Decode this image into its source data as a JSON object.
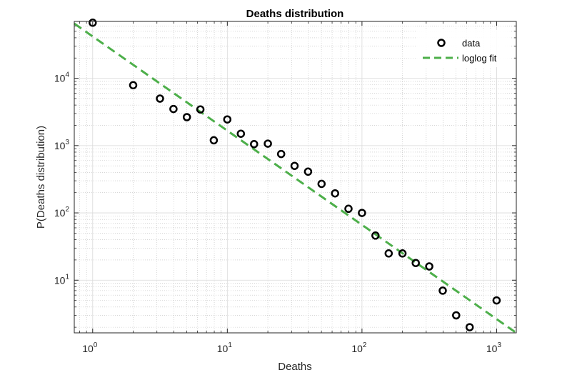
{
  "chart_data": {
    "type": "scatter",
    "title": "Deaths distribution",
    "xlabel": "Deaths",
    "ylabel": "P(Deaths distribution)",
    "x_scale": "log",
    "y_scale": "log",
    "xlim": [
      0.73,
      1400
    ],
    "ylim": [
      1.65,
      70000
    ],
    "grid": true,
    "minor_grid": true,
    "legend_position": "top-right",
    "x_ticks": [
      {
        "value": 1,
        "base": "10",
        "exp": "0"
      },
      {
        "value": 10,
        "base": "10",
        "exp": "1"
      },
      {
        "value": 100,
        "base": "10",
        "exp": "2"
      },
      {
        "value": 1000,
        "base": "10",
        "exp": "3"
      }
    ],
    "y_ticks": [
      {
        "value": 10,
        "base": "10",
        "exp": "1"
      },
      {
        "value": 100,
        "base": "10",
        "exp": "2"
      },
      {
        "value": 1000,
        "base": "10",
        "exp": "3"
      },
      {
        "value": 10000,
        "base": "10",
        "exp": "4"
      }
    ],
    "series": [
      {
        "name": "data",
        "marker": "circle",
        "color": "#000000",
        "points": [
          {
            "x": 1,
            "y": 67000
          },
          {
            "x": 2,
            "y": 7900
          },
          {
            "x": 3.16,
            "y": 5000
          },
          {
            "x": 3.98,
            "y": 3500
          },
          {
            "x": 5.01,
            "y": 2650
          },
          {
            "x": 6.31,
            "y": 3450
          },
          {
            "x": 7.94,
            "y": 1200
          },
          {
            "x": 10,
            "y": 2450
          },
          {
            "x": 12.6,
            "y": 1500
          },
          {
            "x": 15.8,
            "y": 1050
          },
          {
            "x": 20,
            "y": 1070
          },
          {
            "x": 25.1,
            "y": 750
          },
          {
            "x": 31.6,
            "y": 500
          },
          {
            "x": 39.8,
            "y": 410
          },
          {
            "x": 50.1,
            "y": 270
          },
          {
            "x": 63.1,
            "y": 195
          },
          {
            "x": 79.4,
            "y": 115
          },
          {
            "x": 100,
            "y": 100
          },
          {
            "x": 126,
            "y": 46
          },
          {
            "x": 158,
            "y": 25
          },
          {
            "x": 200,
            "y": 25
          },
          {
            "x": 251,
            "y": 18
          },
          {
            "x": 316,
            "y": 16
          },
          {
            "x": 398,
            "y": 7
          },
          {
            "x": 501,
            "y": 3
          },
          {
            "x": 631,
            "y": 2
          },
          {
            "x": 1000,
            "y": 5
          }
        ]
      },
      {
        "name": "loglog fit",
        "style": "dashed-line",
        "color": "#4daf4a",
        "points": [
          {
            "x": 0.73,
            "y": 65000
          },
          {
            "x": 1400,
            "y": 1.65
          }
        ]
      }
    ]
  }
}
